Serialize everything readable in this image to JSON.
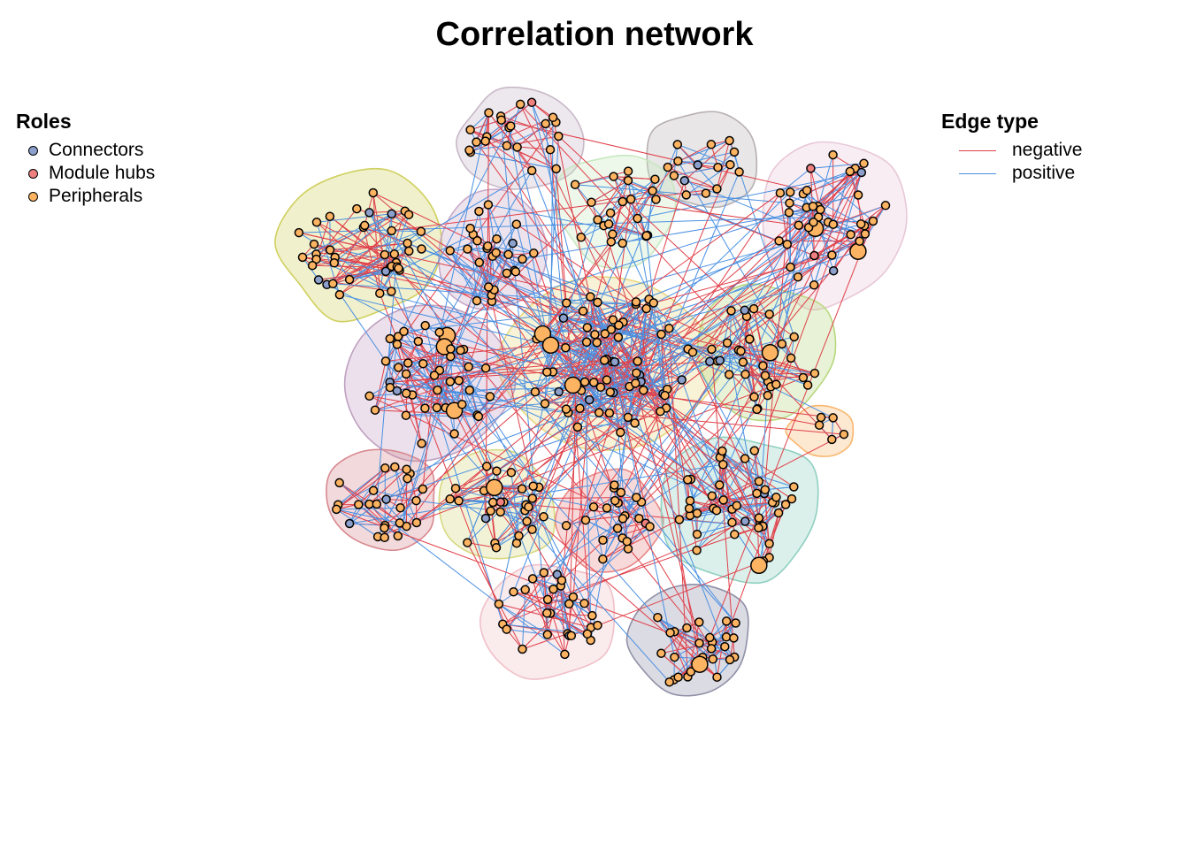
{
  "title": "Correlation network",
  "legends": {
    "roles": {
      "title": "Roles",
      "items": [
        {
          "label": "Connectors",
          "color": "#8DA0CB"
        },
        {
          "label": "Module hubs",
          "color": "#F08080"
        },
        {
          "label": "Peripherals",
          "color": "#FDB462"
        }
      ]
    },
    "edges": {
      "title": "Edge type",
      "items": [
        {
          "label": "negative",
          "color": "#E0404A"
        },
        {
          "label": "positive",
          "color": "#4A90E2"
        }
      ]
    }
  },
  "module_colors": [
    "#C8B8C8",
    "#B8B0B0",
    "#C8E8C0",
    "#E8C8D8",
    "#D0D060",
    "#C8A8C8",
    "#E8D880",
    "#C0A0C0",
    "#B8D880",
    "#F8B870",
    "#D88890",
    "#D8D880",
    "#E88888",
    "#90D0C0",
    "#F0C0C8",
    "#9090A8"
  ]
}
